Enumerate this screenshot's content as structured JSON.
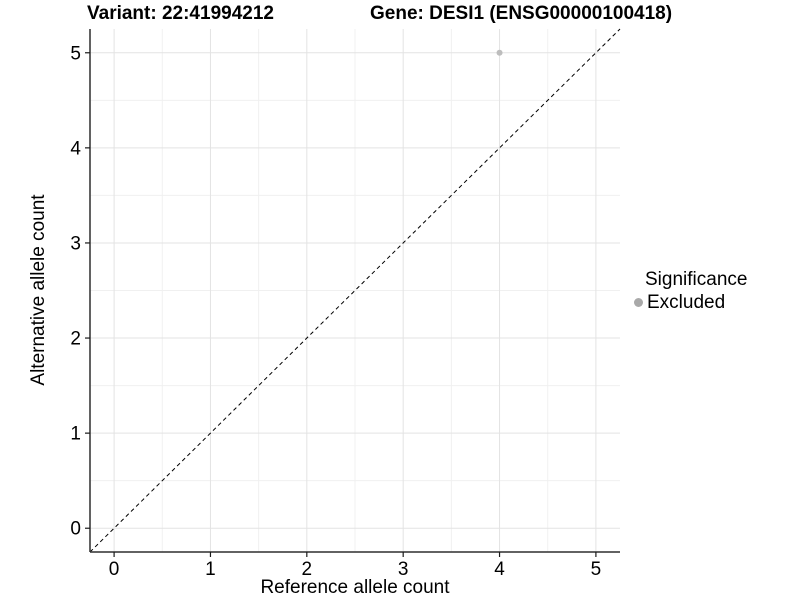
{
  "chart_data": {
    "type": "scatter",
    "titles": [
      "Variant: 22:41994212",
      "Gene: DESI1 (ENSG00000100418)"
    ],
    "xlabel": "Reference allele count",
    "ylabel": "Alternative allele count",
    "xlim": [
      -0.25,
      5.25
    ],
    "ylim": [
      -0.25,
      5.25
    ],
    "x_ticks": [
      0,
      1,
      2,
      3,
      4,
      5
    ],
    "y_ticks": [
      0,
      1,
      2,
      3,
      4,
      5
    ],
    "x_minor_ticks": [
      0.5,
      1.5,
      2.5,
      3.5,
      4.5
    ],
    "y_minor_ticks": [
      0.5,
      1.5,
      2.5,
      3.5,
      4.5
    ],
    "grid": true,
    "series": [
      {
        "name": "Excluded",
        "color": "#bdbdbd",
        "point_radius": 3,
        "points": [
          {
            "x": 4,
            "y": 5
          }
        ]
      }
    ],
    "reference_line": {
      "equation": "y = x",
      "style": "dashed",
      "color": "#000000",
      "from": {
        "x": -0.25,
        "y": -0.25
      },
      "to": {
        "x": 5.25,
        "y": 5.25
      }
    },
    "legend": {
      "title": "Significance",
      "position": "right",
      "entries": [
        {
          "label": "Excluded",
          "color": "#a9a9a9"
        }
      ]
    }
  },
  "style": {
    "background": "#ffffff",
    "text_color": "#000000",
    "grid_major": "#e3e3e3",
    "grid_minor": "#f0f0f0",
    "axis_line": "#2f2f2f",
    "tick_mark": "#1a1a1a",
    "tick_label_size": 19
  }
}
